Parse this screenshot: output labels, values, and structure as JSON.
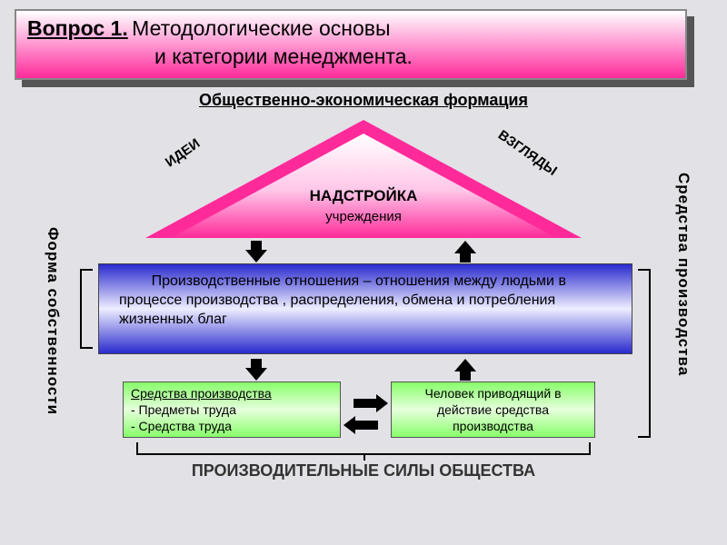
{
  "header": {
    "question": "Вопрос 1.",
    "line1": " Методологические основы",
    "line2": "и категории менеджмента."
  },
  "subtitle": "Общественно-экономическая формация",
  "triangle": {
    "main": "НАДСТРОЙКА",
    "sub": "учреждения",
    "left_label": "ИДЕИ",
    "right_label": "ВЗГЛЯДЫ"
  },
  "blue_box": "        Производственные отношения – отношения между людьми в процессе производства , распределения, обмена и потребления жизненных благ",
  "green_left": {
    "title": "Средства производства",
    "l1": "- Предметы труда",
    "l2": "- Средства труда"
  },
  "green_right": "Человек приводящий в действие средства производства",
  "bottom_label": "ПРОИЗВОДИТЕЛЬНЫЕ СИЛЫ ОБЩЕСТВА",
  "side_left": "Форма собственности",
  "side_right": "Средства производства",
  "colors": {
    "bg": "#e1e1e6",
    "pink_dark": "#ff2a9a",
    "blue_dark": "#2a2acf",
    "green": "#88ff6a"
  }
}
